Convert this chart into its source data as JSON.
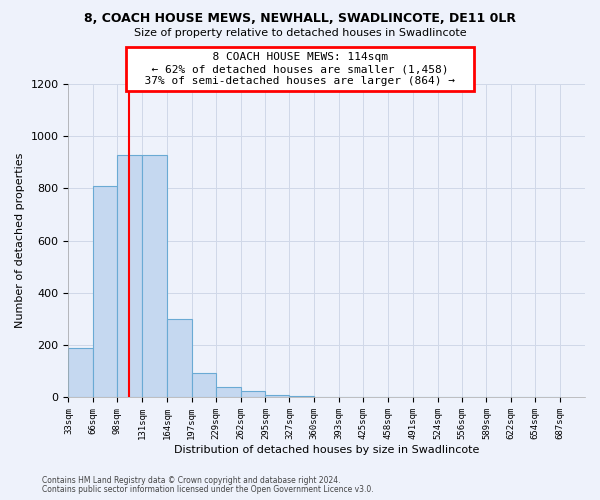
{
  "title1": "8, COACH HOUSE MEWS, NEWHALL, SWADLINCOTE, DE11 0LR",
  "title2": "Size of property relative to detached houses in Swadlincote",
  "xlabel": "Distribution of detached houses by size in Swadlincote",
  "ylabel": "Number of detached properties",
  "bin_edges": [
    33,
    66,
    98,
    131,
    164,
    197,
    229,
    262,
    295,
    327,
    360,
    393,
    425,
    458,
    491,
    524,
    556,
    589,
    622,
    654,
    687
  ],
  "bar_heights": [
    190,
    810,
    930,
    930,
    300,
    95,
    40,
    25,
    10,
    5,
    2,
    1,
    1,
    0,
    0,
    0,
    0,
    0,
    0,
    0
  ],
  "bar_color": "#c5d8f0",
  "bar_edge_color": "#6aaad4",
  "vline_x": 114,
  "vline_color": "red",
  "annotation_text": "  8 COACH HOUSE MEWS: 114sqm  \n  ← 62% of detached houses are smaller (1,458)  \n  37% of semi-detached houses are larger (864) →  ",
  "annotation_box_color": "white",
  "annotation_box_edge": "red",
  "ylim": [
    0,
    1200
  ],
  "yticks": [
    0,
    200,
    400,
    600,
    800,
    1000,
    1200
  ],
  "footnote1": "Contains HM Land Registry data © Crown copyright and database right 2024.",
  "footnote2": "Contains public sector information licensed under the Open Government Licence v3.0.",
  "bg_color": "#eef2fb"
}
